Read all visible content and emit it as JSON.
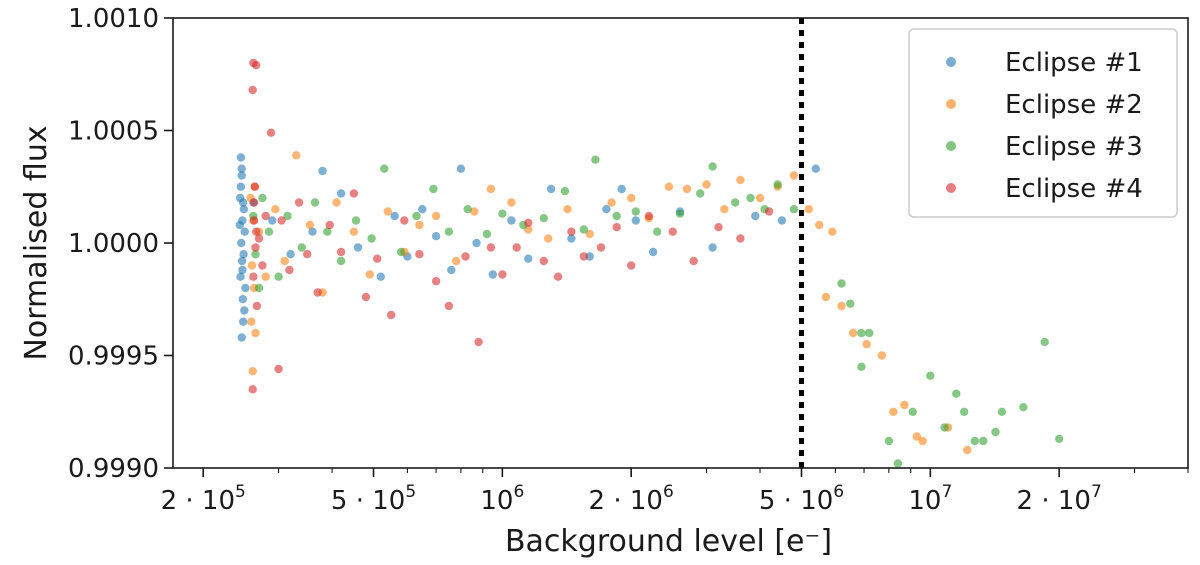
{
  "chart_data": {
    "type": "scatter",
    "xlabel": "Background level [e⁻]",
    "ylabel": "Normalised flux",
    "x_scale": "log",
    "xlim": [
      170000,
      40000000
    ],
    "ylim": [
      0.999,
      1.001
    ],
    "x_ticks": [
      {
        "value": 200000,
        "mant": "2 · 10",
        "exp": "5"
      },
      {
        "value": 500000,
        "mant": "5 · 10",
        "exp": "5"
      },
      {
        "value": 1000000,
        "mant": "10",
        "exp": "6"
      },
      {
        "value": 2000000,
        "mant": "2 · 10",
        "exp": "6"
      },
      {
        "value": 5000000,
        "mant": "5 · 10",
        "exp": "6"
      },
      {
        "value": 10000000,
        "mant": "10",
        "exp": "7"
      },
      {
        "value": 20000000,
        "mant": "2 · 10",
        "exp": "7"
      }
    ],
    "y_ticks": [
      {
        "value": 0.999,
        "label": "0.9990"
      },
      {
        "value": 0.9995,
        "label": "0.9995"
      },
      {
        "value": 1.0,
        "label": "1.0000"
      },
      {
        "value": 1.0005,
        "label": "1.0005"
      },
      {
        "value": 1.001,
        "label": "1.0010"
      }
    ],
    "threshold_x": 5000000,
    "grid": false,
    "legend_position": "top-right",
    "series": [
      {
        "name": "Eclipse #1",
        "color": "#1f77b4",
        "points": [
          [
            245000,
            1.00038
          ],
          [
            246000,
            1.0003
          ],
          [
            244000,
            1.0002
          ],
          [
            247000,
            1.0001
          ],
          [
            245500,
            1.0
          ],
          [
            246500,
            0.99992
          ],
          [
            244500,
            0.99985
          ],
          [
            247500,
            0.99975
          ],
          [
            248000,
            0.99965
          ],
          [
            246000,
            0.99958
          ],
          [
            245000,
            1.00025
          ],
          [
            249000,
            1.00015
          ],
          [
            250000,
            1.00005
          ],
          [
            248500,
            0.99995
          ],
          [
            247000,
            0.99988
          ],
          [
            243500,
            1.00008
          ],
          [
            251000,
            0.9998
          ],
          [
            246000,
            1.00033
          ],
          [
            249500,
            0.9997
          ],
          [
            248000,
            1.00018
          ],
          [
            262000,
            1.00018
          ],
          [
            290000,
            1.0001
          ],
          [
            320000,
            0.99995
          ],
          [
            360000,
            1.00005
          ],
          [
            380000,
            1.00032
          ],
          [
            420000,
            1.00022
          ],
          [
            460000,
            0.99998
          ],
          [
            520000,
            0.99985
          ],
          [
            560000,
            1.00012
          ],
          [
            600000,
            0.99994
          ],
          [
            650000,
            1.00015
          ],
          [
            700000,
            1.00003
          ],
          [
            760000,
            0.99988
          ],
          [
            800000,
            1.00033
          ],
          [
            870000,
            1.0
          ],
          [
            950000,
            0.99986
          ],
          [
            1050000,
            1.0001
          ],
          [
            1150000,
            0.99993
          ],
          [
            1300000,
            1.00024
          ],
          [
            1450000,
            1.00002
          ],
          [
            1600000,
            0.99994
          ],
          [
            1750000,
            1.00015
          ],
          [
            1900000,
            1.00024
          ],
          [
            2050000,
            1.0001
          ],
          [
            2250000,
            0.99996
          ],
          [
            2600000,
            1.00014
          ],
          [
            3100000,
            0.99998
          ],
          [
            3900000,
            1.00012
          ],
          [
            4500000,
            1.0001
          ],
          [
            5400000,
            1.00033
          ]
        ]
      },
      {
        "name": "Eclipse #2",
        "color": "#ff7f0e",
        "points": [
          [
            258000,
            1.0002
          ],
          [
            262000,
            1.0001
          ],
          [
            260000,
            0.9999
          ],
          [
            263000,
            0.9998
          ],
          [
            259000,
            0.99965
          ],
          [
            265000,
            0.9996
          ],
          [
            261000,
            0.99943
          ],
          [
            264000,
            1.00025
          ],
          [
            270000,
            1.00005
          ],
          [
            280000,
            0.99985
          ],
          [
            295000,
            1.00015
          ],
          [
            310000,
            0.99992
          ],
          [
            330000,
            1.00039
          ],
          [
            355000,
            1.00008
          ],
          [
            380000,
            0.99978
          ],
          [
            410000,
            1.00018
          ],
          [
            450000,
            1.00005
          ],
          [
            490000,
            0.99986
          ],
          [
            540000,
            1.00014
          ],
          [
            590000,
            0.99996
          ],
          [
            640000,
            1.00008
          ],
          [
            700000,
            1.00012
          ],
          [
            780000,
            0.99992
          ],
          [
            860000,
            1.00014
          ],
          [
            940000,
            1.00024
          ],
          [
            1050000,
            1.00018
          ],
          [
            1150000,
            1.00006
          ],
          [
            1280000,
            1.00002
          ],
          [
            1420000,
            1.00015
          ],
          [
            1600000,
            1.00004
          ],
          [
            1800000,
            1.00018
          ],
          [
            2000000,
            1.0002
          ],
          [
            2200000,
            1.00011
          ],
          [
            2450000,
            1.00025
          ],
          [
            2700000,
            1.00024
          ],
          [
            3000000,
            1.00026
          ],
          [
            3300000,
            1.00015
          ],
          [
            3600000,
            1.00028
          ],
          [
            4000000,
            1.0002
          ],
          [
            4400000,
            1.00025
          ],
          [
            4800000,
            1.0003
          ],
          [
            5200000,
            1.00015
          ],
          [
            5500000,
            1.00008
          ],
          [
            5700000,
            0.99976
          ],
          [
            5900000,
            1.00005
          ],
          [
            6200000,
            0.99972
          ],
          [
            6600000,
            0.9996
          ],
          [
            7100000,
            0.99955
          ],
          [
            7700000,
            0.9995
          ],
          [
            8200000,
            0.99925
          ],
          [
            8700000,
            0.99928
          ],
          [
            9300000,
            0.99914
          ],
          [
            9600000,
            0.99912
          ],
          [
            11000000,
            0.99918
          ],
          [
            12200000,
            0.99908
          ]
        ]
      },
      {
        "name": "Eclipse #3",
        "color": "#2ca02c",
        "points": [
          [
            262000,
            1.00012
          ],
          [
            265000,
            0.99995
          ],
          [
            270000,
            0.9998
          ],
          [
            275000,
            1.0002
          ],
          [
            285000,
            1.00005
          ],
          [
            300000,
            0.99985
          ],
          [
            315000,
            1.00012
          ],
          [
            340000,
            0.99998
          ],
          [
            365000,
            1.00018
          ],
          [
            390000,
            1.00005
          ],
          [
            420000,
            0.99992
          ],
          [
            455000,
            1.0001
          ],
          [
            495000,
            1.00002
          ],
          [
            530000,
            1.00033
          ],
          [
            580000,
            0.99996
          ],
          [
            630000,
            1.00012
          ],
          [
            690000,
            1.00024
          ],
          [
            750000,
            1.00005
          ],
          [
            830000,
            1.00015
          ],
          [
            920000,
            1.00004
          ],
          [
            1000000,
            1.00013
          ],
          [
            1120000,
            1.00008
          ],
          [
            1250000,
            1.00011
          ],
          [
            1400000,
            1.00023
          ],
          [
            1550000,
            1.00006
          ],
          [
            1650000,
            1.00037
          ],
          [
            1850000,
            1.00012
          ],
          [
            2050000,
            1.00014
          ],
          [
            2300000,
            1.00005
          ],
          [
            2600000,
            1.00013
          ],
          [
            2900000,
            1.00022
          ],
          [
            3100000,
            1.00034
          ],
          [
            3500000,
            1.00018
          ],
          [
            3800000,
            1.0002
          ],
          [
            4100000,
            1.00015
          ],
          [
            4400000,
            1.00026
          ],
          [
            4800000,
            1.00015
          ],
          [
            6200000,
            0.99982
          ],
          [
            6500000,
            0.99973
          ],
          [
            6900000,
            0.9996
          ],
          [
            7200000,
            0.9996
          ],
          [
            6900000,
            0.99945
          ],
          [
            8000000,
            0.99912
          ],
          [
            8400000,
            0.99902
          ],
          [
            9100000,
            0.99925
          ],
          [
            10000000,
            0.99941
          ],
          [
            10800000,
            0.99918
          ],
          [
            11500000,
            0.99933
          ],
          [
            12000000,
            0.99925
          ],
          [
            12700000,
            0.99912
          ],
          [
            13300000,
            0.99912
          ],
          [
            14200000,
            0.99916
          ],
          [
            14700000,
            0.99925
          ],
          [
            16500000,
            0.99927
          ],
          [
            18500000,
            0.99956
          ],
          [
            20000000,
            0.99913
          ]
        ]
      },
      {
        "name": "Eclipse #4",
        "color": "#d62728",
        "points": [
          [
            262000,
            1.0008
          ],
          [
            266000,
            1.00079
          ],
          [
            261000,
            1.00068
          ],
          [
            264000,
            1.00025
          ],
          [
            263000,
            1.0001
          ],
          [
            265000,
            0.99998
          ],
          [
            262000,
            0.99985
          ],
          [
            267000,
            0.99972
          ],
          [
            263000,
            1.00018
          ],
          [
            266000,
            1.00005
          ],
          [
            261000,
            0.99935
          ],
          [
            270000,
            1.00002
          ],
          [
            275000,
            0.9999
          ],
          [
            280000,
            1.00012
          ],
          [
            288000,
            1.00049
          ],
          [
            300000,
            0.99944
          ],
          [
            305000,
            1.0001
          ],
          [
            318000,
            0.99988
          ],
          [
            335000,
            1.00018
          ],
          [
            350000,
            0.99995
          ],
          [
            370000,
            0.99978
          ],
          [
            395000,
            1.00008
          ],
          [
            420000,
            0.99996
          ],
          [
            450000,
            1.00022
          ],
          [
            480000,
            0.99976
          ],
          [
            510000,
            0.99993
          ],
          [
            550000,
            0.99968
          ],
          [
            590000,
            1.0001
          ],
          [
            640000,
            0.99995
          ],
          [
            700000,
            0.99983
          ],
          [
            750000,
            0.99972
          ],
          [
            820000,
            0.99994
          ],
          [
            880000,
            0.99956
          ],
          [
            940000,
            0.99998
          ],
          [
            1000000,
            0.99986
          ],
          [
            1080000,
            0.99998
          ],
          [
            1150000,
            1.00009
          ],
          [
            1250000,
            0.99992
          ],
          [
            1350000,
            0.99985
          ],
          [
            1450000,
            1.00005
          ],
          [
            1550000,
            0.99994
          ],
          [
            1700000,
            0.99998
          ],
          [
            1850000,
            1.00007
          ],
          [
            2000000,
            0.9999
          ],
          [
            2200000,
            1.00012
          ],
          [
            2500000,
            1.00005
          ],
          [
            2800000,
            0.99992
          ],
          [
            3200000,
            1.00007
          ],
          [
            3600000,
            1.00002
          ],
          [
            4200000,
            1.00014
          ]
        ]
      }
    ]
  }
}
